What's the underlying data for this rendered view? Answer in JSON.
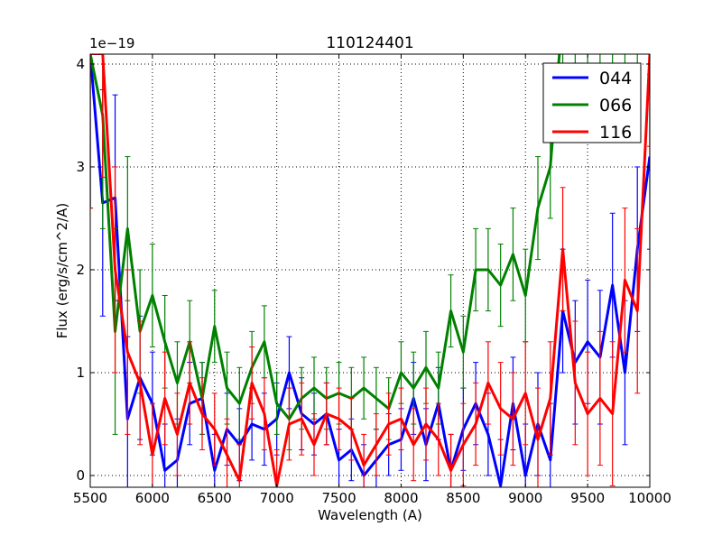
{
  "chart_data": {
    "type": "line",
    "title": "110124401",
    "xlabel": "Wavelength (A)",
    "ylabel": "Flux (erg/s/cm^2/A)",
    "offset_label": "1e−19",
    "xlim": [
      5500,
      10000
    ],
    "ylim": [
      -0.114,
      4.096
    ],
    "xticks": [
      "5500",
      "6000",
      "6500",
      "7000",
      "7500",
      "8000",
      "8500",
      "9000",
      "9500",
      "10000"
    ],
    "yticks": [
      "0",
      "1",
      "2",
      "3",
      "4"
    ],
    "grid": true,
    "legend_position": "top-right",
    "x": [
      5500,
      5600,
      5700,
      5800,
      5900,
      6000,
      6100,
      6200,
      6300,
      6400,
      6500,
      6600,
      6700,
      6800,
      6900,
      7000,
      7100,
      7200,
      7300,
      7400,
      7500,
      7600,
      7700,
      7800,
      7900,
      8000,
      8100,
      8200,
      8300,
      8400,
      8500,
      8600,
      8700,
      8800,
      8900,
      9000,
      9100,
      9200,
      9300,
      9400,
      9500,
      9600,
      9700,
      9800,
      9900,
      10000
    ],
    "series": [
      {
        "name": "044",
        "color": "#0000ff",
        "values": [
          4.1,
          2.65,
          2.7,
          0.55,
          0.95,
          0.7,
          0.05,
          0.15,
          0.7,
          0.75,
          0.05,
          0.45,
          0.3,
          0.5,
          0.45,
          0.55,
          1.0,
          0.6,
          0.5,
          0.6,
          0.15,
          0.25,
          0.0,
          0.15,
          0.3,
          0.35,
          0.75,
          0.3,
          0.7,
          0.05,
          0.45,
          0.7,
          0.4,
          -0.1,
          0.7,
          0.0,
          0.5,
          0.15,
          1.6,
          1.1,
          1.3,
          1.15,
          1.85,
          1.0,
          2.2,
          3.1
        ],
        "err": [
          1.5,
          1.1,
          1.0,
          0.8,
          0.6,
          0.5,
          0.45,
          0.4,
          0.4,
          0.35,
          0.35,
          0.35,
          0.35,
          0.35,
          0.35,
          0.35,
          0.35,
          0.35,
          0.3,
          0.3,
          0.3,
          0.3,
          0.3,
          0.3,
          0.3,
          0.3,
          0.35,
          0.35,
          0.35,
          0.35,
          0.4,
          0.4,
          0.4,
          0.45,
          0.45,
          0.5,
          0.5,
          0.55,
          0.6,
          0.6,
          0.6,
          0.65,
          0.7,
          0.7,
          0.8,
          0.9
        ]
      },
      {
        "name": "066",
        "color": "#008000",
        "values": [
          4.1,
          3.5,
          1.4,
          2.4,
          1.4,
          1.75,
          1.3,
          0.9,
          1.3,
          0.75,
          1.45,
          0.85,
          0.7,
          1.05,
          1.3,
          0.7,
          0.55,
          0.75,
          0.85,
          0.75,
          0.8,
          0.75,
          0.85,
          0.75,
          0.65,
          1.0,
          0.85,
          1.05,
          0.85,
          1.6,
          1.2,
          2.0,
          2.0,
          1.85,
          2.15,
          1.75,
          2.6,
          3.0,
          4.5,
          4.5,
          4.5,
          4.5,
          4.5,
          4.5,
          4.5,
          4.5
        ],
        "err": [
          1.5,
          1.1,
          1.0,
          0.7,
          0.6,
          0.5,
          0.45,
          0.4,
          0.4,
          0.35,
          0.35,
          0.35,
          0.35,
          0.35,
          0.35,
          0.3,
          0.3,
          0.3,
          0.3,
          0.3,
          0.3,
          0.3,
          0.3,
          0.3,
          0.3,
          0.3,
          0.35,
          0.35,
          0.35,
          0.35,
          0.35,
          0.4,
          0.4,
          0.4,
          0.45,
          0.45,
          0.5,
          0.5,
          0.6,
          0.6,
          0.6,
          0.6,
          0.6,
          0.6,
          0.6,
          0.6
        ]
      },
      {
        "name": "116",
        "color": "#ff0000",
        "values": [
          4.1,
          4.1,
          2.0,
          1.2,
          0.9,
          0.2,
          0.75,
          0.4,
          0.9,
          0.6,
          0.45,
          0.2,
          -0.05,
          0.9,
          0.6,
          -0.1,
          0.5,
          0.55,
          0.3,
          0.6,
          0.55,
          0.45,
          0.1,
          0.3,
          0.5,
          0.55,
          0.3,
          0.5,
          0.35,
          0.05,
          0.3,
          0.5,
          0.9,
          0.65,
          0.55,
          0.8,
          0.35,
          0.75,
          2.2,
          0.9,
          0.6,
          0.75,
          0.6,
          1.9,
          1.6,
          4.1
        ],
        "err": [
          1.5,
          1.2,
          1.0,
          0.8,
          0.6,
          0.5,
          0.45,
          0.4,
          0.4,
          0.35,
          0.35,
          0.35,
          0.35,
          0.35,
          0.35,
          0.35,
          0.35,
          0.35,
          0.3,
          0.3,
          0.3,
          0.3,
          0.3,
          0.3,
          0.3,
          0.3,
          0.35,
          0.35,
          0.35,
          0.35,
          0.4,
          0.4,
          0.4,
          0.45,
          0.45,
          0.5,
          0.5,
          0.55,
          0.6,
          0.6,
          0.6,
          0.65,
          0.7,
          0.7,
          0.8,
          0.9
        ]
      }
    ]
  }
}
